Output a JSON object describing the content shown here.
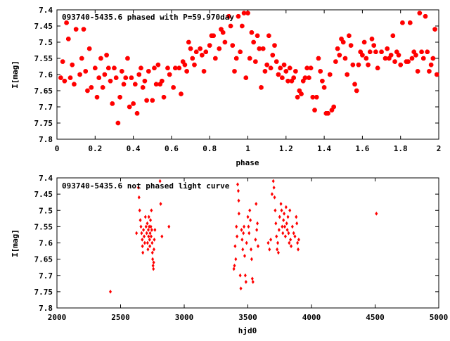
{
  "colors": {
    "marker": "#ff0000",
    "axis": "#000000",
    "background": "#ffffff"
  },
  "chart_data": [
    {
      "type": "scatter",
      "title": "093740-5435.6 phased with P=59.970day",
      "xlabel": "phase",
      "ylabel": "I[mag]",
      "xlim": [
        0,
        2
      ],
      "ylim": [
        7.8,
        7.4
      ],
      "y_inverted": true,
      "grid": false,
      "marker": "star",
      "x_ticks": [
        0,
        0.2,
        0.4,
        0.6,
        0.8,
        1,
        1.2,
        1.4,
        1.6,
        1.8,
        2
      ],
      "x_tick_labels": [
        "0",
        "0.2",
        "0.4",
        "0.6",
        "0.8",
        "1",
        "1.2",
        "1.4",
        "1.6",
        "1.8",
        "2"
      ],
      "y_ticks": [
        7.4,
        7.45,
        7.5,
        7.55,
        7.6,
        7.65,
        7.7,
        7.75,
        7.8
      ],
      "y_tick_labels": [
        "7.4",
        "7.45",
        "7.5",
        "7.55",
        "7.6",
        "7.65",
        "7.7",
        "7.75",
        "7.8"
      ],
      "points": [
        [
          0.02,
          7.61
        ],
        [
          0.03,
          7.56
        ],
        [
          0.04,
          7.62
        ],
        [
          0.05,
          7.44
        ],
        [
          0.06,
          7.49
        ],
        [
          0.07,
          7.61
        ],
        [
          0.08,
          7.57
        ],
        [
          0.09,
          7.63
        ],
        [
          0.1,
          7.46
        ],
        [
          0.12,
          7.6
        ],
        [
          0.13,
          7.55
        ],
        [
          0.14,
          7.46
        ],
        [
          0.15,
          7.59
        ],
        [
          0.16,
          7.65
        ],
        [
          0.17,
          7.52
        ],
        [
          0.18,
          7.64
        ],
        [
          0.2,
          7.58
        ],
        [
          0.21,
          7.67
        ],
        [
          0.22,
          7.61
        ],
        [
          0.23,
          7.55
        ],
        [
          0.24,
          7.64
        ],
        [
          0.25,
          7.6
        ],
        [
          0.26,
          7.54
        ],
        [
          0.27,
          7.58
        ],
        [
          0.28,
          7.62
        ],
        [
          0.29,
          7.69
        ],
        [
          0.3,
          7.58
        ],
        [
          0.31,
          7.61
        ],
        [
          0.32,
          7.75
        ],
        [
          0.33,
          7.67
        ],
        [
          0.34,
          7.59
        ],
        [
          0.35,
          7.63
        ],
        [
          0.36,
          7.61
        ],
        [
          0.37,
          7.55
        ],
        [
          0.38,
          7.7
        ],
        [
          0.39,
          7.61
        ],
        [
          0.4,
          7.69
        ],
        [
          0.41,
          7.63
        ],
        [
          0.42,
          7.72
        ],
        [
          0.43,
          7.6
        ],
        [
          0.44,
          7.58
        ],
        [
          0.45,
          7.64
        ],
        [
          0.46,
          7.62
        ],
        [
          0.47,
          7.68
        ],
        [
          0.48,
          7.59
        ],
        [
          0.5,
          7.68
        ],
        [
          0.51,
          7.58
        ],
        [
          0.52,
          7.63
        ],
        [
          0.53,
          7.57
        ],
        [
          0.54,
          7.63
        ],
        [
          0.55,
          7.62
        ],
        [
          0.56,
          7.67
        ],
        [
          0.58,
          7.58
        ],
        [
          0.59,
          7.6
        ],
        [
          0.61,
          7.64
        ],
        [
          0.62,
          7.58
        ],
        [
          0.64,
          7.58
        ],
        [
          0.65,
          7.66
        ],
        [
          0.66,
          7.56
        ],
        [
          0.67,
          7.57
        ],
        [
          0.68,
          7.59
        ],
        [
          0.69,
          7.5
        ],
        [
          0.7,
          7.52
        ],
        [
          0.71,
          7.55
        ],
        [
          0.72,
          7.57
        ],
        [
          0.73,
          7.53
        ],
        [
          0.75,
          7.52
        ],
        [
          0.76,
          7.54
        ],
        [
          0.77,
          7.59
        ],
        [
          0.78,
          7.53
        ],
        [
          0.8,
          7.51
        ],
        [
          0.81,
          7.48
        ],
        [
          0.82,
          7.48
        ],
        [
          0.83,
          7.55
        ],
        [
          0.85,
          7.52
        ],
        [
          0.86,
          7.46
        ],
        [
          0.87,
          7.47
        ],
        [
          0.88,
          7.5
        ],
        [
          0.9,
          7.42
        ],
        [
          0.91,
          7.45
        ],
        [
          0.92,
          7.51
        ],
        [
          0.93,
          7.59
        ],
        [
          0.94,
          7.55
        ],
        [
          0.95,
          7.42
        ],
        [
          0.96,
          7.53
        ],
        [
          0.97,
          7.45
        ],
        [
          0.98,
          7.41
        ],
        [
          0.99,
          7.61
        ],
        [
          1.0,
          7.41
        ],
        [
          1.01,
          7.55
        ],
        [
          1.02,
          7.47
        ],
        [
          1.03,
          7.5
        ],
        [
          1.04,
          7.56
        ],
        [
          1.05,
          7.48
        ],
        [
          1.06,
          7.52
        ],
        [
          1.07,
          7.64
        ],
        [
          1.08,
          7.52
        ],
        [
          1.09,
          7.59
        ],
        [
          1.1,
          7.57
        ],
        [
          1.11,
          7.48
        ],
        [
          1.12,
          7.58
        ],
        [
          1.13,
          7.54
        ],
        [
          1.14,
          7.51
        ],
        [
          1.15,
          7.56
        ],
        [
          1.16,
          7.6
        ],
        [
          1.17,
          7.58
        ],
        [
          1.18,
          7.61
        ],
        [
          1.19,
          7.57
        ],
        [
          1.2,
          7.59
        ],
        [
          1.21,
          7.62
        ],
        [
          1.22,
          7.58
        ],
        [
          1.23,
          7.62
        ],
        [
          1.24,
          7.61
        ],
        [
          1.25,
          7.59
        ],
        [
          1.26,
          7.67
        ],
        [
          1.27,
          7.65
        ],
        [
          1.28,
          7.66
        ],
        [
          1.29,
          7.62
        ],
        [
          1.3,
          7.61
        ],
        [
          1.31,
          7.58
        ],
        [
          1.32,
          7.61
        ],
        [
          1.33,
          7.58
        ],
        [
          1.34,
          7.67
        ],
        [
          1.35,
          7.71
        ],
        [
          1.36,
          7.67
        ],
        [
          1.37,
          7.55
        ],
        [
          1.38,
          7.59
        ],
        [
          1.39,
          7.62
        ],
        [
          1.4,
          7.64
        ],
        [
          1.41,
          7.72
        ],
        [
          1.42,
          7.72
        ],
        [
          1.43,
          7.6
        ],
        [
          1.44,
          7.71
        ],
        [
          1.45,
          7.7
        ],
        [
          1.46,
          7.56
        ],
        [
          1.47,
          7.52
        ],
        [
          1.48,
          7.54
        ],
        [
          1.49,
          7.49
        ],
        [
          1.5,
          7.5
        ],
        [
          1.51,
          7.55
        ],
        [
          1.52,
          7.6
        ],
        [
          1.53,
          7.48
        ],
        [
          1.54,
          7.51
        ],
        [
          1.55,
          7.57
        ],
        [
          1.56,
          7.63
        ],
        [
          1.57,
          7.65
        ],
        [
          1.58,
          7.57
        ],
        [
          1.59,
          7.53
        ],
        [
          1.6,
          7.54
        ],
        [
          1.61,
          7.5
        ],
        [
          1.62,
          7.55
        ],
        [
          1.63,
          7.57
        ],
        [
          1.64,
          7.53
        ],
        [
          1.65,
          7.49
        ],
        [
          1.66,
          7.51
        ],
        [
          1.67,
          7.53
        ],
        [
          1.68,
          7.58
        ],
        [
          1.7,
          7.53
        ],
        [
          1.72,
          7.55
        ],
        [
          1.73,
          7.52
        ],
        [
          1.74,
          7.55
        ],
        [
          1.75,
          7.54
        ],
        [
          1.76,
          7.48
        ],
        [
          1.77,
          7.56
        ],
        [
          1.78,
          7.53
        ],
        [
          1.79,
          7.54
        ],
        [
          1.8,
          7.57
        ],
        [
          1.81,
          7.44
        ],
        [
          1.83,
          7.56
        ],
        [
          1.84,
          7.56
        ],
        [
          1.85,
          7.44
        ],
        [
          1.86,
          7.55
        ],
        [
          1.87,
          7.53
        ],
        [
          1.88,
          7.54
        ],
        [
          1.89,
          7.59
        ],
        [
          1.9,
          7.41
        ],
        [
          1.91,
          7.53
        ],
        [
          1.92,
          7.55
        ],
        [
          1.93,
          7.42
        ],
        [
          1.94,
          7.53
        ],
        [
          1.95,
          7.59
        ],
        [
          1.96,
          7.57
        ],
        [
          1.97,
          7.55
        ],
        [
          1.98,
          7.46
        ],
        [
          1.99,
          7.6
        ]
      ]
    },
    {
      "type": "scatter",
      "title": "093740-5435.6 not phased light curve",
      "xlabel": "hjd0",
      "ylabel": "I[mag]",
      "xlim": [
        2000,
        5000
      ],
      "ylim": [
        7.8,
        7.4
      ],
      "y_inverted": true,
      "grid": false,
      "marker": "diamond",
      "x_ticks": [
        2000,
        2500,
        3000,
        3500,
        4000,
        4500,
        5000
      ],
      "x_tick_labels": [
        "2000",
        "2500",
        "3000",
        "3500",
        "4000",
        "4500",
        "5000"
      ],
      "y_ticks": [
        7.4,
        7.45,
        7.5,
        7.55,
        7.6,
        7.65,
        7.7,
        7.75,
        7.8
      ],
      "y_tick_labels": [
        "7.4",
        "7.45",
        "7.5",
        "7.55",
        "7.6",
        "7.65",
        "7.7",
        "7.75",
        "7.8"
      ],
      "points": [
        [
          2420,
          7.75
        ],
        [
          2625,
          7.57
        ],
        [
          2640,
          7.43
        ],
        [
          2645,
          7.46
        ],
        [
          2650,
          7.5
        ],
        [
          2655,
          7.53
        ],
        [
          2660,
          7.55
        ],
        [
          2665,
          7.57
        ],
        [
          2670,
          7.59
        ],
        [
          2672,
          7.61
        ],
        [
          2675,
          7.63
        ],
        [
          2680,
          7.56
        ],
        [
          2685,
          7.58
        ],
        [
          2690,
          7.6
        ],
        [
          2695,
          7.52
        ],
        [
          2700,
          7.55
        ],
        [
          2705,
          7.57
        ],
        [
          2710,
          7.54
        ],
        [
          2712,
          7.6
        ],
        [
          2715,
          7.62
        ],
        [
          2718,
          7.56
        ],
        [
          2720,
          7.58
        ],
        [
          2722,
          7.52
        ],
        [
          2725,
          7.55
        ],
        [
          2728,
          7.59
        ],
        [
          2730,
          7.61
        ],
        [
          2732,
          7.57
        ],
        [
          2735,
          7.53
        ],
        [
          2738,
          7.55
        ],
        [
          2740,
          7.58
        ],
        [
          2742,
          7.5
        ],
        [
          2745,
          7.56
        ],
        [
          2748,
          7.6
        ],
        [
          2750,
          7.63
        ],
        [
          2752,
          7.65
        ],
        [
          2755,
          7.67
        ],
        [
          2758,
          7.68
        ],
        [
          2760,
          7.66
        ],
        [
          2762,
          7.62
        ],
        [
          2765,
          7.59
        ],
        [
          2770,
          7.56
        ],
        [
          2810,
          7.41
        ],
        [
          2815,
          7.48
        ],
        [
          2825,
          7.58
        ],
        [
          2880,
          7.55
        ],
        [
          3390,
          7.68
        ],
        [
          3395,
          7.67
        ],
        [
          3400,
          7.61
        ],
        [
          3405,
          7.65
        ],
        [
          3410,
          7.55
        ],
        [
          3415,
          7.58
        ],
        [
          3420,
          7.42
        ],
        [
          3425,
          7.44
        ],
        [
          3428,
          7.47
        ],
        [
          3430,
          7.51
        ],
        [
          3440,
          7.7
        ],
        [
          3445,
          7.74
        ],
        [
          3450,
          7.56
        ],
        [
          3455,
          7.59
        ],
        [
          3460,
          7.62
        ],
        [
          3465,
          7.57
        ],
        [
          3470,
          7.55
        ],
        [
          3475,
          7.64
        ],
        [
          3480,
          7.7
        ],
        [
          3485,
          7.72
        ],
        [
          3490,
          7.6
        ],
        [
          3500,
          7.52
        ],
        [
          3505,
          7.55
        ],
        [
          3510,
          7.57
        ],
        [
          3515,
          7.5
        ],
        [
          3520,
          7.53
        ],
        [
          3525,
          7.62
        ],
        [
          3530,
          7.65
        ],
        [
          3535,
          7.71
        ],
        [
          3540,
          7.72
        ],
        [
          3560,
          7.59
        ],
        [
          3565,
          7.48
        ],
        [
          3570,
          7.56
        ],
        [
          3575,
          7.54
        ],
        [
          3580,
          7.61
        ],
        [
          3660,
          7.6
        ],
        [
          3670,
          7.62
        ],
        [
          3680,
          7.59
        ],
        [
          3690,
          7.45
        ],
        [
          3700,
          7.41
        ],
        [
          3705,
          7.43
        ],
        [
          3710,
          7.46
        ],
        [
          3715,
          7.5
        ],
        [
          3720,
          7.54
        ],
        [
          3725,
          7.58
        ],
        [
          3730,
          7.62
        ],
        [
          3735,
          7.6
        ],
        [
          3740,
          7.63
        ],
        [
          3745,
          7.56
        ],
        [
          3750,
          7.52
        ],
        [
          3760,
          7.48
        ],
        [
          3765,
          7.5
        ],
        [
          3770,
          7.55
        ],
        [
          3775,
          7.57
        ],
        [
          3780,
          7.53
        ],
        [
          3785,
          7.51
        ],
        [
          3790,
          7.55
        ],
        [
          3795,
          7.58
        ],
        [
          3800,
          7.49
        ],
        [
          3805,
          7.54
        ],
        [
          3810,
          7.56
        ],
        [
          3815,
          7.52
        ],
        [
          3820,
          7.57
        ],
        [
          3825,
          7.6
        ],
        [
          3830,
          7.5
        ],
        [
          3835,
          7.59
        ],
        [
          3840,
          7.61
        ],
        [
          3850,
          7.55
        ],
        [
          3860,
          7.57
        ],
        [
          3870,
          7.58
        ],
        [
          3880,
          7.52
        ],
        [
          3885,
          7.54
        ],
        [
          3890,
          7.6
        ],
        [
          3895,
          7.62
        ],
        [
          3900,
          7.59
        ],
        [
          4510,
          7.51
        ]
      ]
    }
  ]
}
